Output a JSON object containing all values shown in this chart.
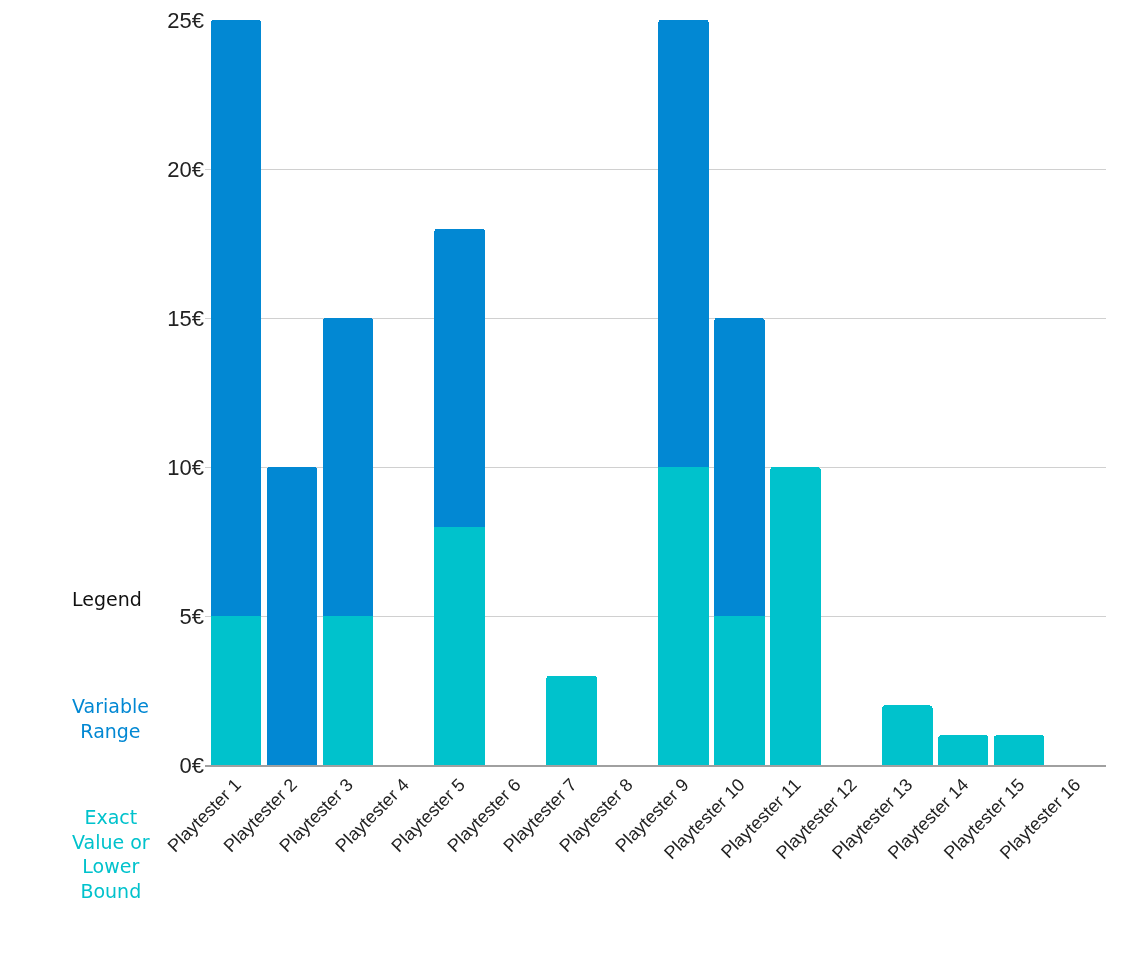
{
  "chart_data": {
    "type": "bar",
    "stacked": true,
    "legend": "left",
    "legend_title": "Legend",
    "grid": "y",
    "categories": [
      "Playtester 1",
      "Playtester 2",
      "Playtester 3",
      "Playtester 4",
      "Playtester 5",
      "Playtester 6",
      "Playtester 7",
      "Playtester 8",
      "Playtester 9",
      "Playtester 10",
      "Playtester 11",
      "Playtester 12",
      "Playtester 13",
      "Playtester 14",
      "Playtester 15",
      "Playtester 16"
    ],
    "series": [
      {
        "name": "Exact Value or Lower Bound",
        "color": "#00c2cc",
        "values": [
          5,
          null,
          5,
          null,
          8,
          null,
          3,
          null,
          10,
          5,
          10,
          null,
          2,
          1,
          1,
          null
        ]
      },
      {
        "name": "Variable Range",
        "color": "#0288d3",
        "values": [
          20,
          10,
          10,
          null,
          10,
          null,
          null,
          null,
          15,
          10,
          null,
          null,
          null,
          null,
          null,
          null
        ]
      }
    ],
    "ylim": [
      0,
      25
    ],
    "yticks": [
      {
        "value": 0,
        "label": "0€"
      },
      {
        "value": 5,
        "label": "5€"
      },
      {
        "value": 10,
        "label": "10€"
      },
      {
        "value": 15,
        "label": "15€"
      },
      {
        "value": 20,
        "label": "20€"
      },
      {
        "value": 25,
        "label": "25€"
      }
    ]
  }
}
